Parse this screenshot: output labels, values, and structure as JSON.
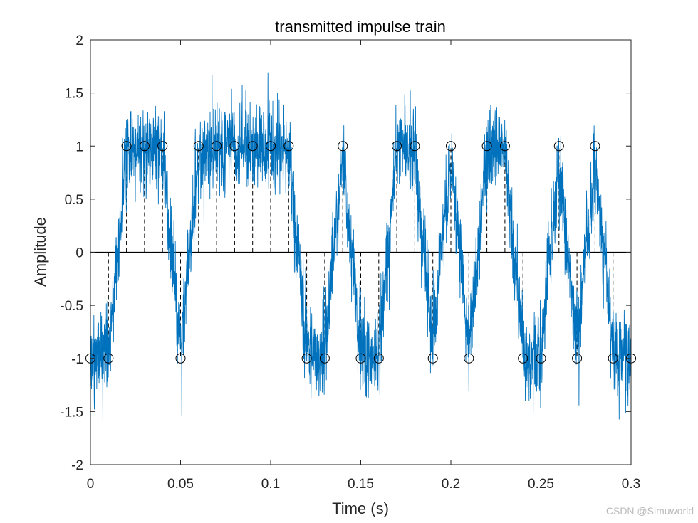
{
  "chart_data": {
    "type": "line",
    "title": "transmitted impulse train",
    "xlabel": "Time (s)",
    "ylabel": "Amplitude",
    "xlim": [
      0,
      0.3
    ],
    "ylim": [
      -2,
      2
    ],
    "xticks": [
      0,
      0.05,
      0.1,
      0.15,
      0.2,
      0.25,
      0.3
    ],
    "xtick_labels": [
      "0",
      "0.05",
      "0.1",
      "0.15",
      "0.2",
      "0.25",
      "0.3"
    ],
    "yticks": [
      -2,
      -1.5,
      -1,
      -0.5,
      0,
      0.5,
      1,
      1.5,
      2
    ],
    "ytick_labels": [
      "-2",
      "-1.5",
      "-1",
      "-0.5",
      "0",
      "0.5",
      "1",
      "1.5",
      "2"
    ],
    "grid": false,
    "zero_line": true,
    "colors": {
      "signal": "#0072BD",
      "stem": "#000000",
      "axes": "#262626"
    },
    "symbol_period": 0.01,
    "impulse_times": [
      0,
      0.01,
      0.02,
      0.03,
      0.04,
      0.05,
      0.06,
      0.07,
      0.08,
      0.09,
      0.1,
      0.11,
      0.12,
      0.13,
      0.14,
      0.15,
      0.16,
      0.17,
      0.18,
      0.19,
      0.2,
      0.21,
      0.22,
      0.23,
      0.24,
      0.25,
      0.26,
      0.27,
      0.28,
      0.29,
      0.3
    ],
    "impulse_values": [
      -1,
      -1,
      1,
      1,
      1,
      -1,
      1,
      1,
      1,
      1,
      1,
      1,
      -1,
      -1,
      1,
      -1,
      -1,
      1,
      1,
      -1,
      1,
      -1,
      1,
      1,
      -1,
      -1,
      1,
      -1,
      1,
      -1,
      -1
    ],
    "series": [
      {
        "style": "stem",
        "marker": "circle",
        "line": "dashed",
        "x": [
          0,
          0.01,
          0.02,
          0.03,
          0.04,
          0.05,
          0.06,
          0.07,
          0.08,
          0.09,
          0.1,
          0.11,
          0.12,
          0.13,
          0.14,
          0.15,
          0.16,
          0.17,
          0.18,
          0.19,
          0.2,
          0.21,
          0.22,
          0.23,
          0.24,
          0.25,
          0.26,
          0.27,
          0.28,
          0.29,
          0.3
        ],
        "values": [
          -1,
          -1,
          1,
          1,
          1,
          -1,
          1,
          1,
          1,
          1,
          1,
          1,
          -1,
          -1,
          1,
          -1,
          -1,
          1,
          1,
          -1,
          1,
          -1,
          1,
          1,
          -1,
          -1,
          1,
          -1,
          1,
          -1,
          -1
        ]
      },
      {
        "style": "line",
        "shape": "impulses filtered to a smooth waveform with added noise",
        "noise_std": 0.2
      }
    ]
  },
  "watermark": "CSDN @Simuworld"
}
